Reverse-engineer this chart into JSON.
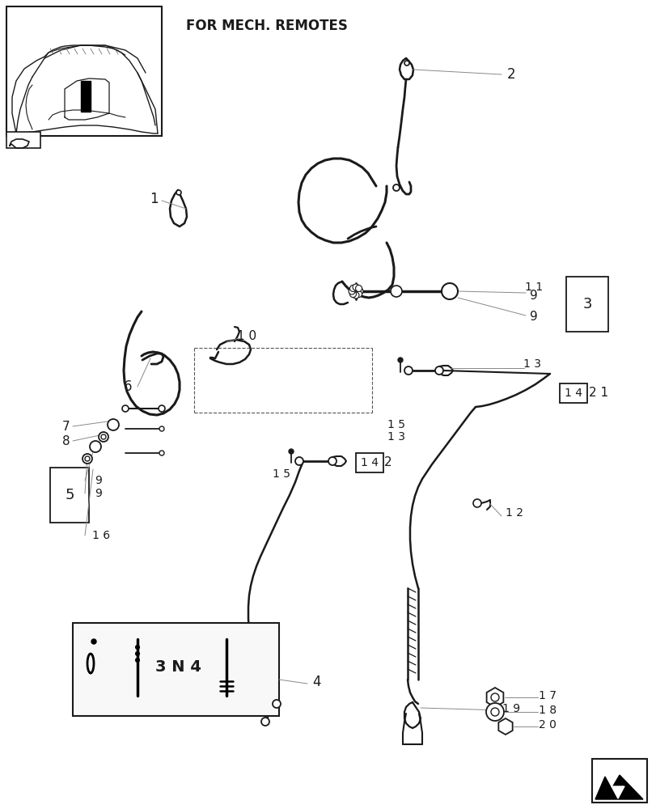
{
  "background_color": "#ffffff",
  "line_color": "#1a1a1a",
  "gray_color": "#888888",
  "header_text": "FOR MECH. REMOTES",
  "fig_width": 8.12,
  "fig_height": 10.0,
  "dpi": 100
}
